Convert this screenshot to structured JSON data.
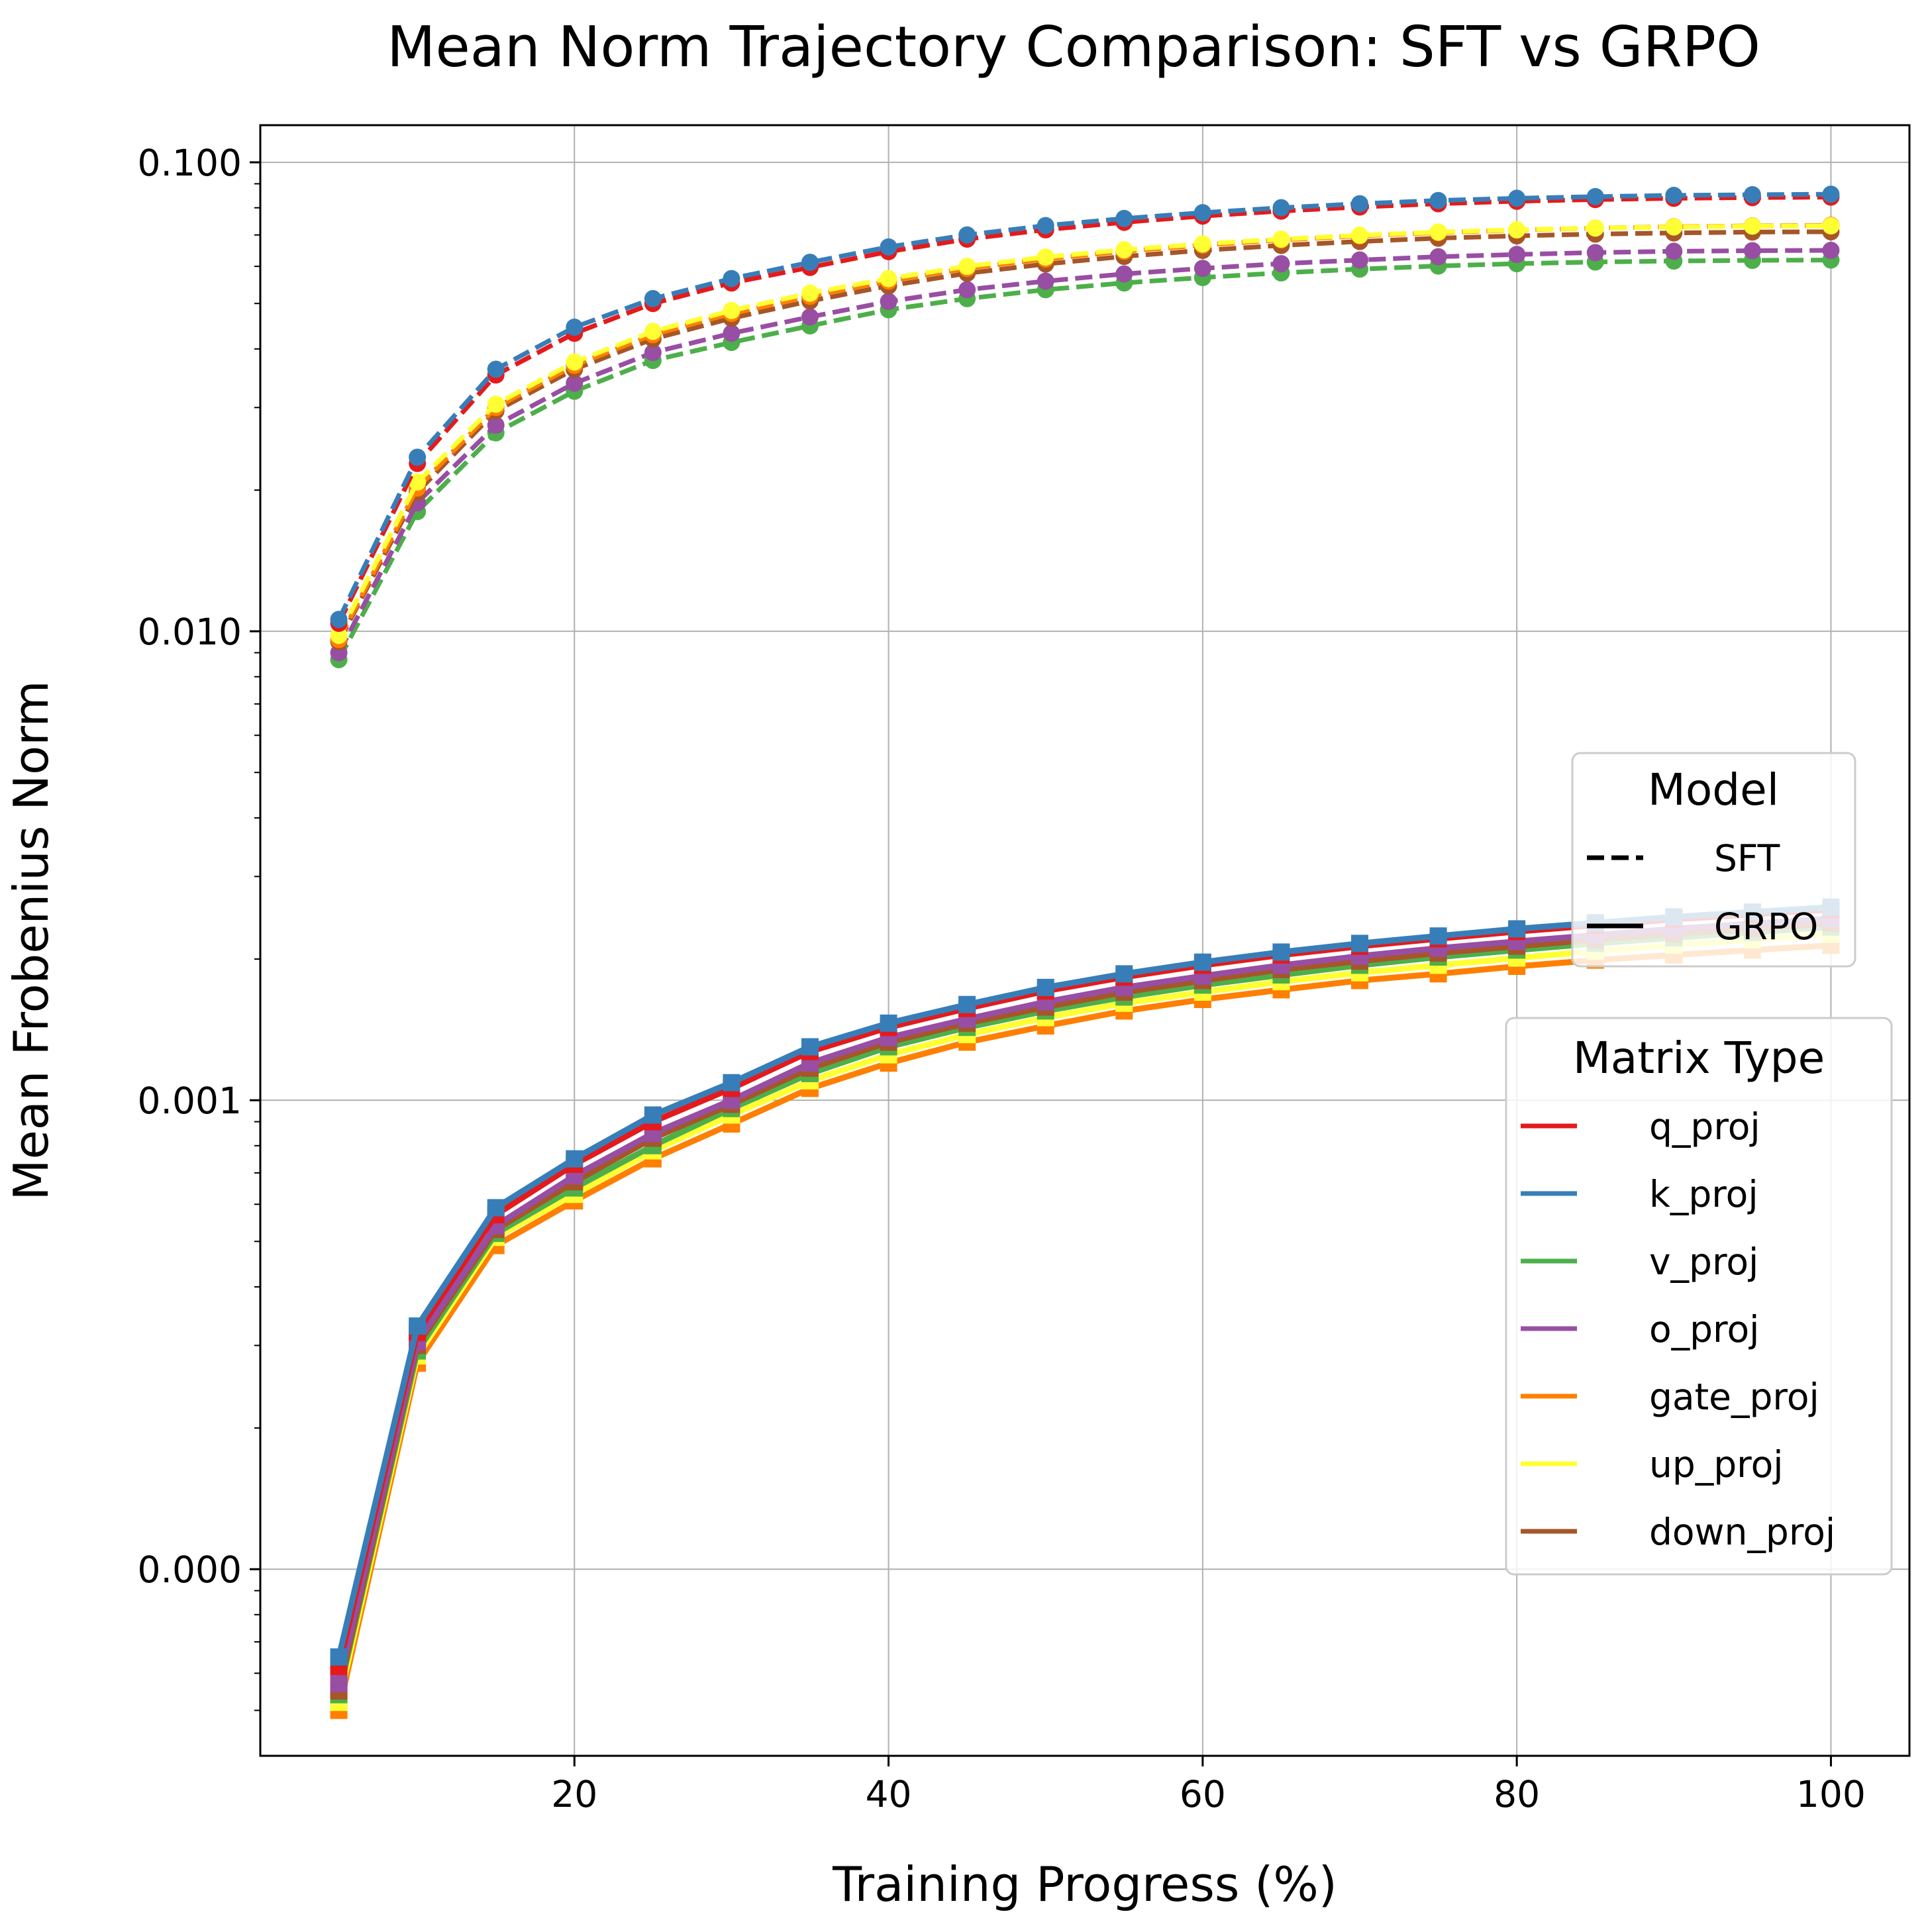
{
  "chart_data": {
    "type": "line",
    "title": "Mean Norm Trajectory Comparison: SFT vs GRPO",
    "xlabel": "Training Progress (%)",
    "ylabel": "Mean Frobenius Norm",
    "yscale": "log",
    "xlim": [
      0,
      105
    ],
    "ylim": [
      4e-05,
      0.12
    ],
    "grid": true,
    "x_ticks": [
      20,
      40,
      60,
      80,
      100
    ],
    "y_ticks": [
      {
        "value": 0.0001,
        "label": "0.000"
      },
      {
        "value": 0.001,
        "label": "0.001"
      },
      {
        "value": 0.01,
        "label": "0.010"
      },
      {
        "value": 0.1,
        "label": "0.100"
      }
    ],
    "x": [
      5,
      10,
      15,
      20,
      25,
      30,
      35,
      40,
      45,
      50,
      55,
      60,
      65,
      70,
      75,
      80,
      85,
      90,
      95,
      100
    ],
    "legend_model": {
      "title": "Model",
      "placement": "center-right",
      "entries": [
        {
          "label": "SFT",
          "style": "dashed"
        },
        {
          "label": "GRPO",
          "style": "solid"
        }
      ]
    },
    "legend_matrix": {
      "title": "Matrix Type",
      "placement": "lower-right",
      "entries": [
        {
          "label": "q_proj",
          "color": "#e41a1c"
        },
        {
          "label": "k_proj",
          "color": "#377eb8"
        },
        {
          "label": "v_proj",
          "color": "#4daf4a"
        },
        {
          "label": "o_proj",
          "color": "#984ea3"
        },
        {
          "label": "gate_proj",
          "color": "#ff7f00"
        },
        {
          "label": "up_proj",
          "color": "#ffff33"
        },
        {
          "label": "down_proj",
          "color": "#a65628"
        }
      ]
    },
    "series": [
      {
        "model": "SFT",
        "matrix": "v_proj",
        "values": [
          0.0087,
          0.018,
          0.0265,
          0.0325,
          0.0378,
          0.0413,
          0.0448,
          0.0485,
          0.0512,
          0.0535,
          0.0553,
          0.0568,
          0.0581,
          0.0592,
          0.0601,
          0.0608,
          0.0613,
          0.0616,
          0.0618,
          0.0619
        ]
      },
      {
        "model": "SFT",
        "matrix": "o_proj",
        "values": [
          0.009,
          0.0188,
          0.0275,
          0.0338,
          0.0393,
          0.0432,
          0.0468,
          0.0505,
          0.0535,
          0.0558,
          0.0578,
          0.0594,
          0.0608,
          0.0619,
          0.0629,
          0.0636,
          0.0642,
          0.0646,
          0.0648,
          0.0649
        ]
      },
      {
        "model": "SFT",
        "matrix": "down_proj",
        "values": [
          0.0095,
          0.0198,
          0.0295,
          0.0362,
          0.042,
          0.0465,
          0.0506,
          0.0545,
          0.058,
          0.0607,
          0.063,
          0.0649,
          0.0665,
          0.0678,
          0.0689,
          0.0697,
          0.0703,
          0.0707,
          0.071,
          0.0711
        ]
      },
      {
        "model": "SFT",
        "matrix": "gate_proj",
        "values": [
          0.0096,
          0.0202,
          0.03,
          0.0369,
          0.0429,
          0.0476,
          0.0518,
          0.0558,
          0.0594,
          0.0622,
          0.0646,
          0.0666,
          0.0683,
          0.0697,
          0.0708,
          0.0717,
          0.0724,
          0.0729,
          0.0732,
          0.0734
        ]
      },
      {
        "model": "SFT",
        "matrix": "up_proj",
        "values": [
          0.0098,
          0.0208,
          0.0305,
          0.0375,
          0.0436,
          0.0483,
          0.0526,
          0.0565,
          0.06,
          0.0628,
          0.0651,
          0.067,
          0.0686,
          0.0699,
          0.071,
          0.0718,
          0.0724,
          0.0728,
          0.0731,
          0.0732
        ]
      },
      {
        "model": "SFT",
        "matrix": "q_proj",
        "values": [
          0.0104,
          0.0228,
          0.0352,
          0.0432,
          0.05,
          0.0553,
          0.0597,
          0.0645,
          0.0686,
          0.0718,
          0.0745,
          0.0768,
          0.0787,
          0.0803,
          0.0816,
          0.0826,
          0.0833,
          0.0838,
          0.0841,
          0.0843
        ]
      },
      {
        "model": "SFT",
        "matrix": "k_proj",
        "values": [
          0.0106,
          0.0235,
          0.0362,
          0.0445,
          0.0512,
          0.0565,
          0.0612,
          0.066,
          0.07,
          0.0733,
          0.0759,
          0.0781,
          0.08,
          0.0816,
          0.0829,
          0.0838,
          0.0845,
          0.085,
          0.0853,
          0.0855
        ]
      },
      {
        "model": "GRPO",
        "matrix": "gate_proj",
        "values": [
          5e-05,
          0.000275,
          0.00049,
          0.00061,
          0.00075,
          0.00089,
          0.00106,
          0.0012,
          0.00133,
          0.00144,
          0.00155,
          0.00164,
          0.00172,
          0.0018,
          0.00186,
          0.00193,
          0.00199,
          0.00204,
          0.00209,
          0.00214
        ]
      },
      {
        "model": "GRPO",
        "matrix": "up_proj",
        "values": [
          5.2e-05,
          0.000285,
          0.00051,
          0.00063,
          0.00078,
          0.00093,
          0.0011,
          0.00125,
          0.00138,
          0.0015,
          0.00161,
          0.0017,
          0.00179,
          0.00187,
          0.00194,
          0.00201,
          0.00208,
          0.00214,
          0.0022,
          0.00226
        ]
      },
      {
        "model": "GRPO",
        "matrix": "v_proj",
        "values": [
          5.4e-05,
          0.000292,
          0.00052,
          0.00065,
          0.0008,
          0.00096,
          0.00114,
          0.0013,
          0.00143,
          0.00155,
          0.00166,
          0.00176,
          0.00185,
          0.00194,
          0.00202,
          0.00209,
          0.00216,
          0.00222,
          0.00228,
          0.00234
        ]
      },
      {
        "model": "GRPO",
        "matrix": "down_proj",
        "values": [
          5.5e-05,
          0.0003,
          0.00053,
          0.00067,
          0.00083,
          0.00098,
          0.00117,
          0.00133,
          0.00146,
          0.00158,
          0.0017,
          0.0018,
          0.0019,
          0.00198,
          0.00206,
          0.00213,
          0.0022,
          0.00226,
          0.00232,
          0.00238
        ]
      },
      {
        "model": "GRPO",
        "matrix": "o_proj",
        "values": [
          5.7e-05,
          0.000305,
          0.00054,
          0.00069,
          0.00085,
          0.001,
          0.0012,
          0.00136,
          0.00149,
          0.00162,
          0.00174,
          0.00184,
          0.00194,
          0.00203,
          0.00211,
          0.00218,
          0.00225,
          0.00232,
          0.00238,
          0.00244
        ]
      },
      {
        "model": "GRPO",
        "matrix": "q_proj",
        "values": [
          6.2e-05,
          0.00032,
          0.00057,
          0.00073,
          0.0009,
          0.00106,
          0.00127,
          0.00143,
          0.00157,
          0.00171,
          0.00183,
          0.00194,
          0.00204,
          0.00213,
          0.00221,
          0.00229,
          0.00236,
          0.00243,
          0.00249,
          0.00255
        ]
      },
      {
        "model": "GRPO",
        "matrix": "k_proj",
        "values": [
          6.5e-05,
          0.00033,
          0.00059,
          0.00075,
          0.00093,
          0.00109,
          0.0013,
          0.00146,
          0.0016,
          0.00174,
          0.00186,
          0.00197,
          0.00207,
          0.00216,
          0.00224,
          0.00232,
          0.00239,
          0.00246,
          0.00252,
          0.00258
        ]
      }
    ]
  }
}
